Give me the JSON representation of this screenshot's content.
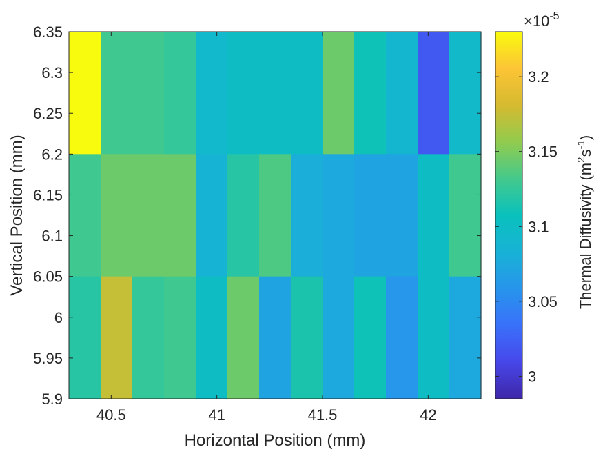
{
  "chart_data": {
    "type": "heatmap",
    "xlabel": "Horizontal Position (mm)",
    "ylabel": "Vertical Position (mm)",
    "xlim": [
      40.3,
      42.25
    ],
    "ylim": [
      5.9,
      6.35
    ],
    "x_ticks": [
      "40.5",
      "41",
      "41.5",
      "42"
    ],
    "x_tick_values": [
      40.5,
      41,
      41.5,
      42
    ],
    "y_ticks": [
      "5.9",
      "5.95",
      "6",
      "6.05",
      "6.1",
      "6.15",
      "6.2",
      "6.25",
      "6.3",
      "6.35"
    ],
    "y_tick_values": [
      5.9,
      5.95,
      6.0,
      6.05,
      6.1,
      6.15,
      6.2,
      6.25,
      6.3,
      6.35
    ],
    "x_edges": [
      40.3,
      40.45,
      40.6,
      40.75,
      40.9,
      41.05,
      41.2,
      41.35,
      41.5,
      41.65,
      41.8,
      41.95,
      42.1,
      42.25
    ],
    "y_edges": [
      6.35,
      6.2,
      6.05,
      5.9
    ],
    "values_e5": [
      [
        3.23,
        3.13,
        3.13,
        3.125,
        3.092,
        3.1,
        3.1,
        3.1,
        3.145,
        3.11,
        3.09,
        3.02,
        3.095
      ],
      [
        3.13,
        3.145,
        3.145,
        3.145,
        3.085,
        3.12,
        3.135,
        3.08,
        3.075,
        3.07,
        3.07,
        3.1,
        3.13
      ],
      [
        3.12,
        3.175,
        3.125,
        3.13,
        3.1,
        3.145,
        3.07,
        3.115,
        3.075,
        3.11,
        3.06,
        3.1,
        3.075
      ]
    ],
    "colorbar": {
      "label": "Thermal Diffusivity (m",
      "label_sup1": "2",
      "label_mid": "s",
      "label_sup2": "-1",
      "label_end": ")",
      "exponent_prefix": "×10",
      "exponent": "-5",
      "range_e5": [
        2.985,
        3.23
      ],
      "ticks": [
        "3",
        "3.05",
        "3.1",
        "3.15",
        "3.2"
      ],
      "tick_values_e5": [
        3.0,
        3.05,
        3.1,
        3.15,
        3.2
      ],
      "colormap": "parula"
    }
  }
}
